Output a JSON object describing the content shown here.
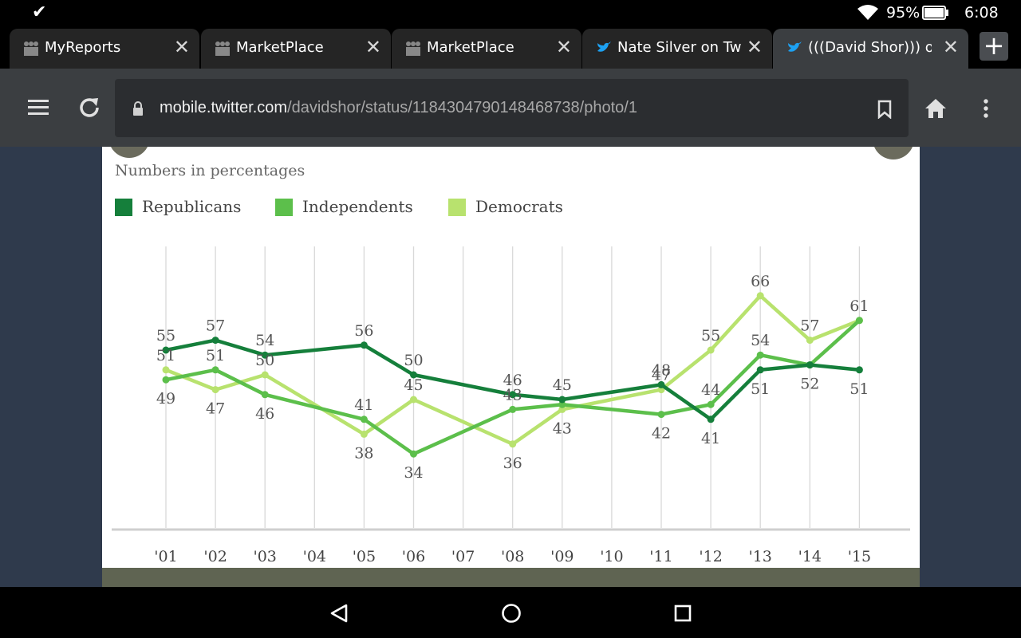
{
  "status_bar": {
    "battery": "95%",
    "time": "6:08",
    "icons": [
      "download-done-icon",
      "wifi-icon",
      "battery-icon"
    ]
  },
  "tabs": [
    {
      "label": "MyReports",
      "favicon": "people-icon",
      "active": false
    },
    {
      "label": "MarketPlace",
      "favicon": "people-icon",
      "active": false
    },
    {
      "label": "MarketPlace",
      "favicon": "people-icon",
      "active": false
    },
    {
      "label": "Nate Silver on Twitt",
      "favicon": "twitter-bird-icon",
      "active": false
    },
    {
      "label": "(((David Shor))) on T",
      "favicon": "twitter-bird-icon",
      "active": true
    }
  ],
  "new_tab_label": "+",
  "url": {
    "domain": "mobile.twitter.com",
    "path": "/davidshor/status/1184304790148468738/photo/1"
  },
  "chart_data": {
    "type": "line",
    "subtitle": "Numbers in percentages",
    "categories": [
      "'01",
      "'02",
      "'03",
      "'04",
      "'05",
      "'06",
      "'07",
      "'08",
      "'09",
      "'10",
      "'11",
      "'12",
      "'13",
      "'14",
      "'15"
    ],
    "series": [
      {
        "name": "Republicans",
        "color": "#157f3b",
        "x": [
          "'01",
          "'02",
          "'03",
          "'05",
          "'06",
          "'08",
          "'09",
          "'11",
          "'12",
          "'13",
          "'14",
          "'15"
        ],
        "values": [
          55,
          57,
          54,
          56,
          50,
          46,
          45,
          48,
          41,
          51,
          52,
          51
        ],
        "labels": [
          "55",
          "57",
          "54",
          "56",
          "50",
          "46",
          "45",
          "48",
          "41",
          "51",
          "52",
          "51"
        ]
      },
      {
        "name": "Independents",
        "color": "#5cbf4b",
        "x": [
          "'01",
          "'02",
          "'03",
          "'05",
          "'06",
          "'08",
          "'09",
          "'11",
          "'12",
          "'13",
          "'14",
          "'15"
        ],
        "values": [
          49,
          51,
          46,
          41,
          34,
          43,
          44,
          42,
          44,
          54,
          52,
          61
        ],
        "labels": [
          "49",
          "51",
          "46",
          "41",
          "34",
          "43",
          "",
          "42",
          "44",
          "54",
          "",
          "61"
        ]
      },
      {
        "name": "Democrats",
        "color": "#b8e26e",
        "x": [
          "'01",
          "'02",
          "'03",
          "'05",
          "'06",
          "'08",
          "'09",
          "'11",
          "'12",
          "'13",
          "'14",
          "'15"
        ],
        "values": [
          51,
          47,
          50,
          38,
          45,
          36,
          43,
          47,
          55,
          66,
          57,
          61
        ],
        "labels": [
          "51",
          "47",
          "50",
          "38",
          "45",
          "36",
          "43",
          "47",
          "55",
          "66",
          "57",
          ""
        ]
      }
    ],
    "ylim": [
      30,
      70
    ],
    "grid": "vertical",
    "legend_position": "top-left"
  }
}
